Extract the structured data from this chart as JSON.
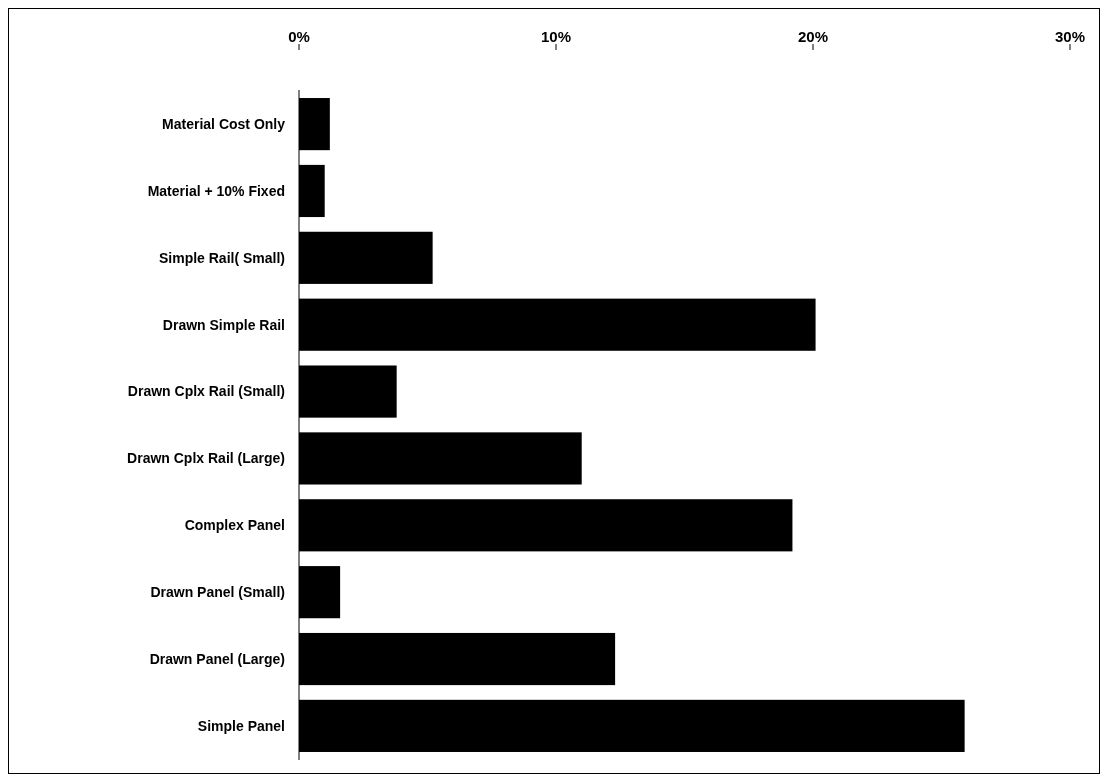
{
  "chart_data": {
    "type": "bar",
    "orientation": "horizontal",
    "categories": [
      "Material Cost Only",
      "Material + 10% Fixed",
      "Simple Rail( Small)",
      "Drawn Simple Rail",
      "Drawn Cplx Rail (Small)",
      "Drawn Cplx Rail (Large)",
      "Complex Panel",
      "Drawn Panel (Small)",
      "Drawn Panel (Large)",
      "Simple Panel"
    ],
    "values": [
      1.2,
      1.0,
      5.2,
      20.1,
      3.8,
      11.0,
      19.2,
      1.6,
      12.3,
      25.9
    ],
    "color": "#000000",
    "xlim": [
      0,
      30
    ],
    "xticks": [
      {
        "value": 0,
        "label": "0%"
      },
      {
        "value": 10,
        "label": "10%"
      },
      {
        "value": 20,
        "label": "20%"
      },
      {
        "value": 30,
        "label": "30%"
      }
    ],
    "grid": false
  }
}
